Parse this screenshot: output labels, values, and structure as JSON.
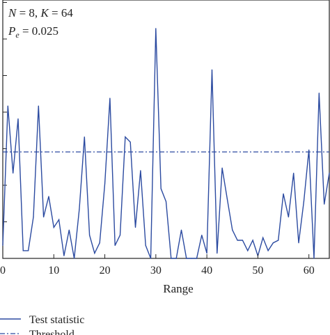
{
  "chart_data": {
    "type": "line",
    "xlabel": "Range",
    "x_ticks": [
      "0",
      "10",
      "20",
      "30",
      "40",
      "50",
      "60"
    ],
    "xlim": [
      0,
      64
    ],
    "ylim": [
      0,
      1.0
    ],
    "grid": false,
    "annotations": {
      "line1_italic": "N",
      "line1_mid": " = 8, ",
      "line1_italic2": "K",
      "line1_end": " = 64",
      "line2_italic": "P",
      "line2_sub": "e",
      "line2_end": " = 0.025"
    },
    "legend": {
      "placement": "bottom-left",
      "entries": [
        "Test statistic",
        "Threshold"
      ]
    },
    "colors": {
      "series": "#2b4aa0",
      "threshold": "#2b4aa0",
      "axis": "#222222"
    },
    "threshold": 0.412,
    "series": [
      {
        "name": "Test statistic",
        "x": [
          0,
          1,
          2,
          3,
          4,
          5,
          6,
          7,
          8,
          9,
          10,
          11,
          12,
          13,
          14,
          15,
          16,
          17,
          18,
          19,
          20,
          21,
          22,
          23,
          24,
          25,
          26,
          27,
          28,
          29,
          30,
          31,
          32,
          33,
          34,
          35,
          36,
          37,
          38,
          39,
          40,
          41,
          42,
          43,
          44,
          45,
          46,
          47,
          48,
          49,
          50,
          51,
          52,
          53,
          54,
          55,
          56,
          57,
          58,
          59,
          60,
          61,
          62,
          63,
          64
        ],
        "values": [
          0.05,
          0.59,
          0.33,
          0.54,
          0.03,
          0.03,
          0.16,
          0.59,
          0.16,
          0.24,
          0.12,
          0.15,
          0.01,
          0.11,
          0.0,
          0.19,
          0.47,
          0.09,
          0.02,
          0.06,
          0.29,
          0.62,
          0.05,
          0.09,
          0.47,
          0.45,
          0.12,
          0.34,
          0.05,
          0.0,
          0.89,
          0.27,
          0.22,
          0.0,
          0.0,
          0.11,
          0.0,
          0.0,
          0.0,
          0.09,
          0.02,
          0.73,
          0.02,
          0.35,
          0.23,
          0.11,
          0.07,
          0.07,
          0.03,
          0.07,
          0.01,
          0.08,
          0.03,
          0.06,
          0.07,
          0.25,
          0.16,
          0.33,
          0.06,
          0.22,
          0.42,
          0.0,
          0.64,
          0.21,
          0.33
        ]
      }
    ]
  }
}
